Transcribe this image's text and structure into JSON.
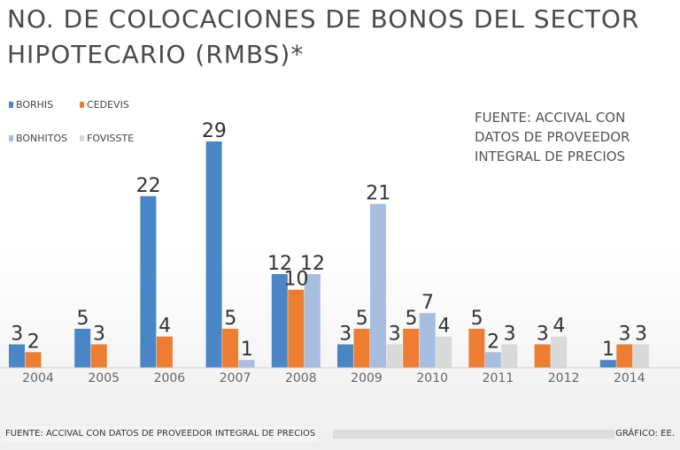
{
  "title": "NO. DE COLOCACIONES DE BONOS DEL SECTOR HIPOTECARIO (RMBS)*",
  "source_note": "FUENTE: ACCIVAL CON DATOS DE PROVEEDOR INTEGRAL DE PRECIOS",
  "footer": {
    "source": "FUENTE: ACCIVAL CON DATOS DE PROVEEDOR INTEGRAL DE PRECIOS",
    "credit": "GRÁFICO: EE."
  },
  "chart_data": {
    "type": "bar",
    "title": "NO. DE COLOCACIONES DE BONOS DEL SECTOR HIPOTECARIO (RMBS)*",
    "xlabel": "",
    "ylabel": "",
    "ylim": [
      0,
      30
    ],
    "grid": false,
    "legend_position": "top-left",
    "categories": [
      "2004",
      "2005",
      "2006",
      "2007",
      "2008",
      "2009",
      "2010",
      "2011",
      "2012",
      "2014"
    ],
    "series": [
      {
        "name": "BORHIS",
        "color": "#4a86c5",
        "values": [
          3,
          5,
          22,
          29,
          12,
          3,
          null,
          null,
          null,
          1
        ]
      },
      {
        "name": "CEDEVIS",
        "color": "#ed7d31",
        "values": [
          2,
          3,
          4,
          5,
          10,
          5,
          5,
          5,
          3,
          3
        ]
      },
      {
        "name": "BONHITOS",
        "color": "#a6bedf",
        "values": [
          null,
          null,
          null,
          1,
          12,
          21,
          7,
          2,
          null,
          null
        ]
      },
      {
        "name": "FOVISSTE",
        "color": "#d9d9d9",
        "values": [
          null,
          null,
          null,
          null,
          null,
          3,
          4,
          3,
          4,
          3
        ]
      }
    ]
  }
}
